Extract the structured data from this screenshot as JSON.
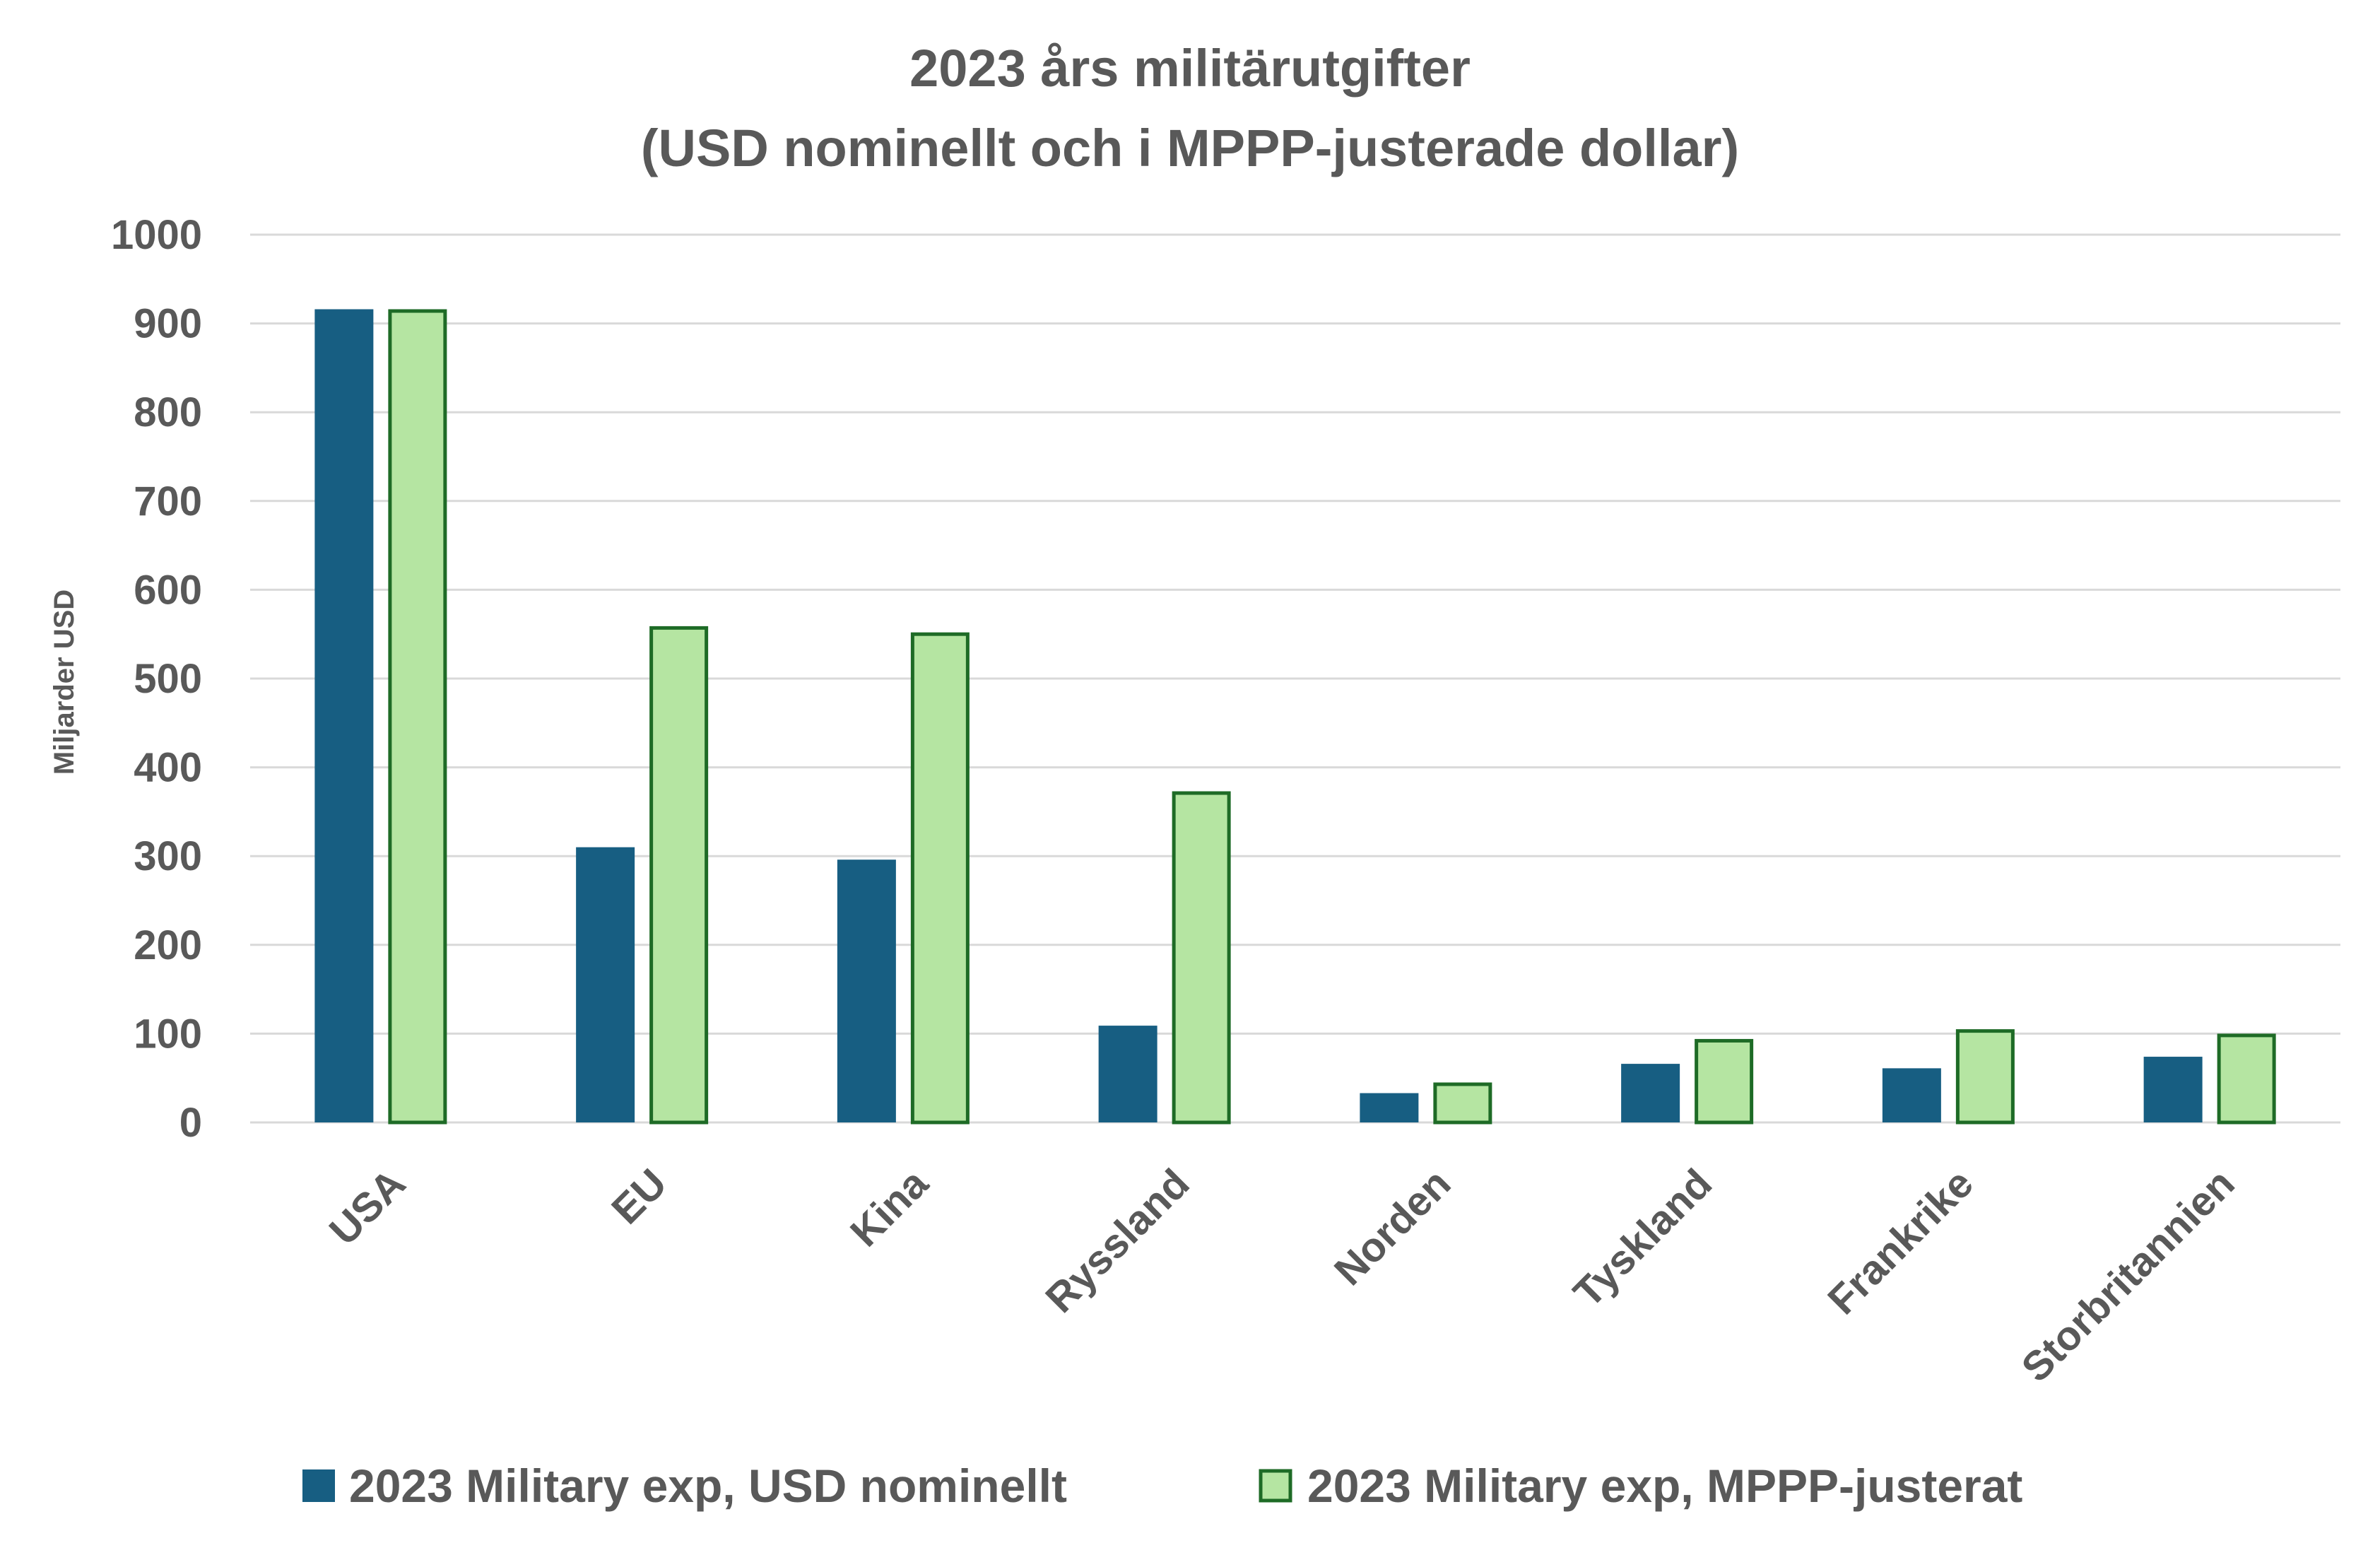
{
  "chart_data": {
    "type": "bar",
    "title": [
      "2023 års militärutgifter",
      "(USD nominellt och i MPPP-justerade dollar)"
    ],
    "xlabel": "",
    "ylabel": "Miljarder USD",
    "ylim": [
      0,
      1000
    ],
    "yticks": [
      0,
      100,
      200,
      300,
      400,
      500,
      600,
      700,
      800,
      900,
      1000
    ],
    "grid": true,
    "legend_position": "bottom",
    "categories": [
      "USA",
      "EU",
      "Kina",
      "Ryssland",
      "Norden",
      "Tyskland",
      "Frankrike",
      "Storbritannien"
    ],
    "series": [
      {
        "name": "2023 Military exp, USD nominellt",
        "color": "#175e82",
        "values": [
          916,
          310,
          296,
          109,
          33,
          66,
          61,
          74
        ]
      },
      {
        "name": "2023 Military exp, MPPP-justerat",
        "color": "#b5e5a2",
        "border_color": "#1e6b26",
        "values": [
          916,
          559,
          552,
          373,
          45,
          94,
          105,
          100
        ]
      }
    ]
  }
}
